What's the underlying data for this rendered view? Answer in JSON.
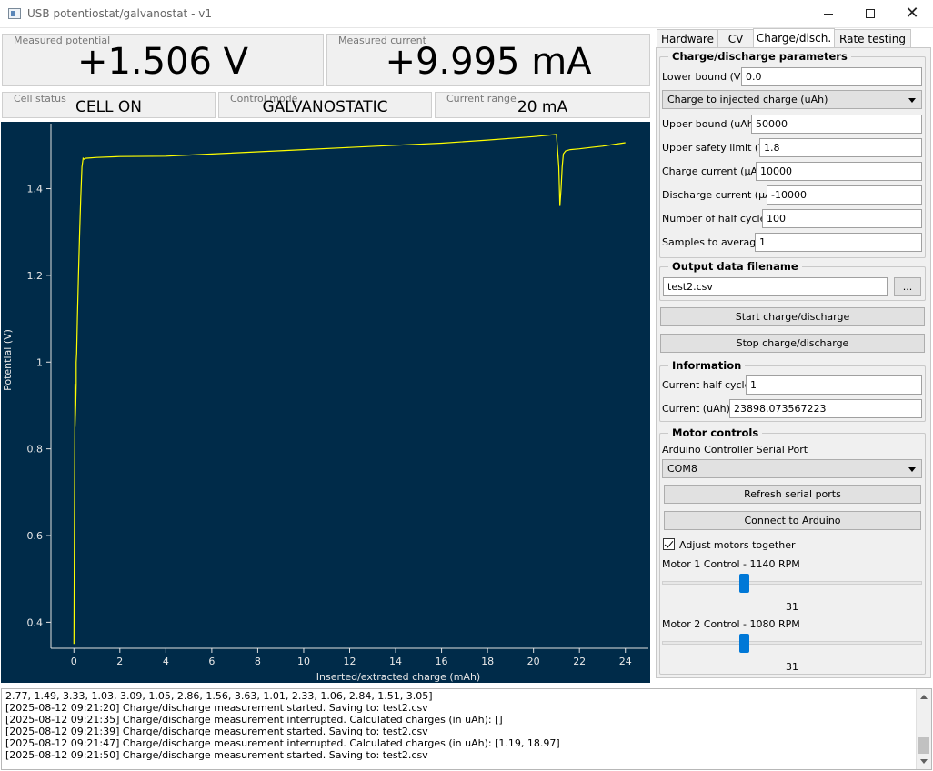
{
  "window": {
    "title": "USB potentiostat/galvanostat - v1"
  },
  "readouts": {
    "measured_potential": {
      "label": "Measured potential",
      "value": "+1.506 V"
    },
    "measured_current": {
      "label": "Measured current",
      "value": "+9.995 mA"
    },
    "cell_status": {
      "label": "Cell status",
      "value": "CELL ON"
    },
    "control_mode": {
      "label": "Control mode",
      "value": "GALVANOSTATIC"
    },
    "current_range": {
      "label": "Current range",
      "value": "20 mA"
    }
  },
  "chart_data": {
    "type": "line",
    "xlabel": "Inserted/extracted charge (mAh)",
    "ylabel": "Potential (V)",
    "xlim": [
      -1,
      25
    ],
    "ylim": [
      0.34,
      1.55
    ],
    "xticks": [
      0,
      2,
      4,
      6,
      8,
      10,
      12,
      14,
      16,
      18,
      20,
      22,
      24
    ],
    "yticks": [
      0.4,
      0.6,
      0.8,
      1,
      1.2,
      1.4
    ],
    "grid": false,
    "line_color": "#ffff00",
    "background": "#002b49",
    "series": [
      {
        "x": [
          0.0,
          0.02,
          0.05,
          0.05,
          0.08,
          0.1,
          0.1,
          0.12,
          0.15,
          0.2,
          0.25,
          0.3,
          0.35,
          0.4,
          0.45,
          0.5,
          1.0,
          2.0,
          4.0,
          6.0,
          8.0,
          10.0,
          12.0,
          14.0,
          16.0,
          18.0,
          20.0,
          21.0,
          21.1,
          21.15,
          21.2,
          21.25,
          21.3,
          21.4,
          21.6,
          22.0,
          22.5,
          23.0,
          23.5,
          24.0
        ],
        "y": [
          0.35,
          0.6,
          0.95,
          0.85,
          0.9,
          0.95,
          1.0,
          1.02,
          1.1,
          1.2,
          1.3,
          1.38,
          1.45,
          1.47,
          1.468,
          1.47,
          1.472,
          1.474,
          1.475,
          1.48,
          1.485,
          1.49,
          1.495,
          1.5,
          1.505,
          1.512,
          1.52,
          1.525,
          1.45,
          1.36,
          1.4,
          1.45,
          1.48,
          1.487,
          1.49,
          1.492,
          1.495,
          1.498,
          1.502,
          1.506
        ]
      }
    ]
  },
  "tabs": [
    "Hardware",
    "CV",
    "Charge/disch.",
    "Rate testing"
  ],
  "active_tab": "Charge/disch.",
  "params": {
    "title": "Charge/discharge parameters",
    "lower_bound_label": "Lower bound (V)",
    "lower_bound_value": "0.0",
    "mode_select": "Charge to injected charge (uAh)",
    "upper_bound_label": "Upper bound (uAh)",
    "upper_bound_value": "50000",
    "upper_safety_label": "Upper safety limit (V)",
    "upper_safety_value": "1.8",
    "charge_current_label": "Charge current (µA)",
    "charge_current_value": "10000",
    "discharge_current_label": "Discharge current (µA)",
    "discharge_current_value": "-10000",
    "half_cycles_label": "Number of half cycles",
    "half_cycles_value": "100",
    "samples_label": "Samples to average",
    "samples_value": "1"
  },
  "output": {
    "title": "Output data filename",
    "filename": "test2.csv",
    "browse_label": "..."
  },
  "actions": {
    "start_label": "Start charge/discharge",
    "stop_label": "Stop charge/discharge"
  },
  "info": {
    "title": "Information",
    "half_cycle_label": "Current half cycle",
    "half_cycle_value": "1",
    "current_label": "Current (uAh)",
    "current_value": "23898.073567223"
  },
  "motors": {
    "title": "Motor controls",
    "port_label": "Arduino Controller Serial Port",
    "port_value": "COM8",
    "refresh_label": "Refresh serial ports",
    "connect_label": "Connect to Arduino",
    "adjust_together_label": "Adjust motors together",
    "adjust_together_checked": true,
    "motor1_label": "Motor 1 Control - 1140 RPM",
    "motor1_value": "31",
    "motor2_label": "Motor 2 Control - 1080 RPM",
    "motor2_value": "31"
  },
  "log": [
    "2.77, 1.49, 3.33, 1.03, 3.09, 1.05, 2.86, 1.56, 3.63, 1.01, 2.33, 1.06, 2.84, 1.51, 3.05]",
    "[2025-08-12 09:21:20] Charge/discharge measurement started. Saving to: test2.csv",
    "[2025-08-12 09:21:35] Charge/discharge measurement interrupted. Calculated charges (in uAh): []",
    "[2025-08-12 09:21:39] Charge/discharge measurement started. Saving to: test2.csv",
    "[2025-08-12 09:21:47] Charge/discharge measurement interrupted. Calculated charges (in uAh): [1.19, 18.97]",
    "[2025-08-12 09:21:50] Charge/discharge measurement started. Saving to: test2.csv"
  ]
}
